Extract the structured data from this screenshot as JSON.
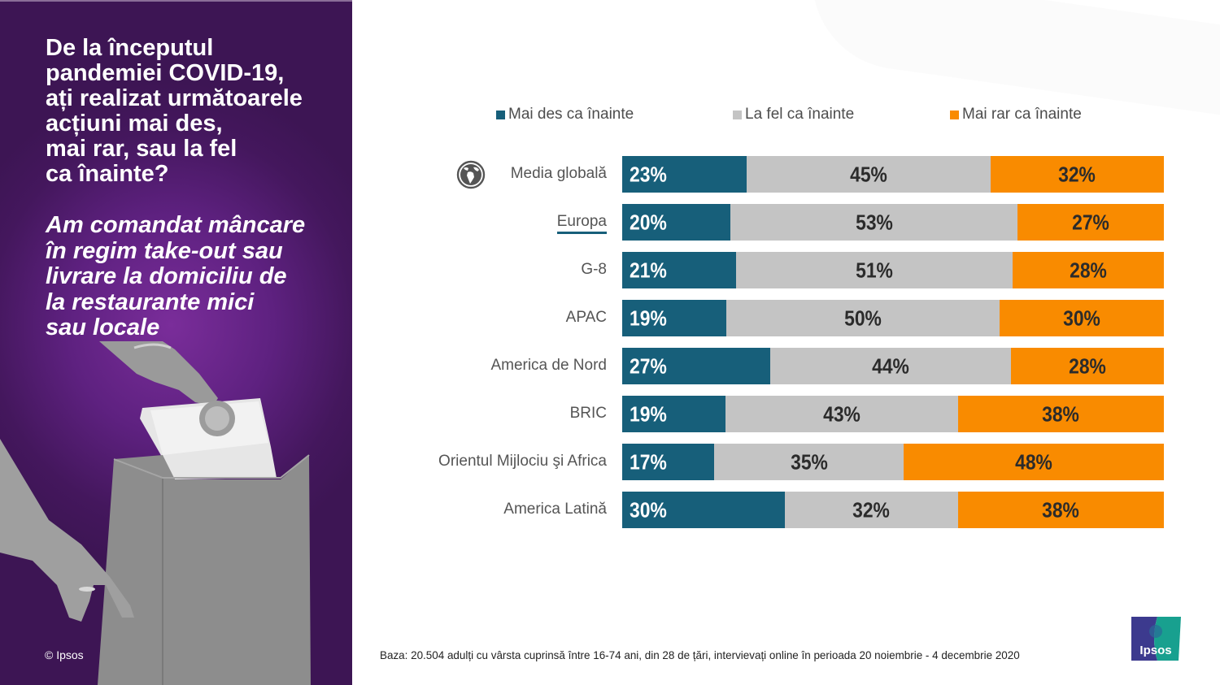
{
  "left_panel": {
    "question": "De la începutul\npandemiei COVID-19,\nați realizat următoarele\nacțiuni mai des,\nmai rar, sau la fel\nca înainte?",
    "statement": "Am comandat mâncare\nîn regim take-out sau\nlivrare la domiciliu de\nla restaurante mici\nsau locale",
    "copyright": "© Ipsos",
    "background_color": "#5e2180"
  },
  "legend": [
    {
      "label": "Mai des ca înainte",
      "color": "#175f7a"
    },
    {
      "label": "La fel ca înainte",
      "color": "#c4c4c4"
    },
    {
      "label": "Mai rar ca înainte",
      "color": "#f98b00"
    }
  ],
  "chart_data": {
    "type": "bar",
    "orientation": "horizontal",
    "stacked": true,
    "title": "",
    "xlabel": "",
    "ylabel": "",
    "legend_position": "top",
    "grid": false,
    "categories": [
      "Media globală",
      "Europa",
      "G-8",
      "APAC",
      "America de Nord",
      "BRIC",
      "Orientul Mijlociu şi Africa",
      "America Latină"
    ],
    "highlighted_category": "Europa",
    "series": [
      {
        "name": "Mai des ca înainte",
        "color": "#175f7a",
        "values": [
          23,
          20,
          21,
          19,
          27,
          19,
          17,
          30
        ]
      },
      {
        "name": "La fel ca înainte",
        "color": "#c4c4c4",
        "values": [
          45,
          53,
          51,
          50,
          44,
          43,
          35,
          32
        ]
      },
      {
        "name": "Mai rar ca înainte",
        "color": "#f98b00",
        "values": [
          32,
          27,
          28,
          30,
          28,
          38,
          48,
          38
        ]
      }
    ],
    "value_suffix": "%",
    "xlim": [
      0,
      100
    ]
  },
  "footer": {
    "base_note": "Baza: 20.504 adulți cu vârsta cuprinsă între 16-74 ani, din 28 de țări, intervievați online în perioada 20 noiembrie - 4 decembrie 2020",
    "logo_text": "Ipsos"
  }
}
